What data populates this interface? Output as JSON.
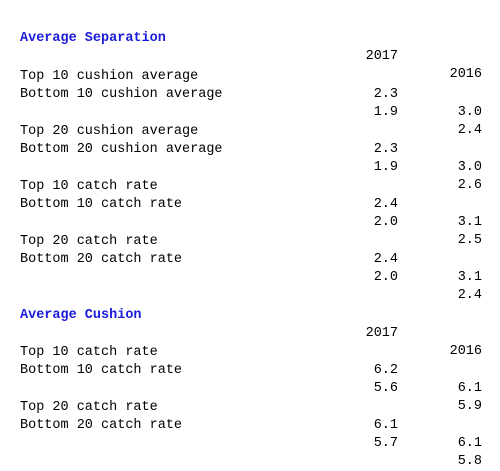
{
  "accent_color": "#1a1adb",
  "sections": [
    {
      "title": "Average Separation",
      "years": [
        "2017",
        "2016"
      ],
      "groups": [
        [
          {
            "label": "Top 10 cushion average",
            "v2017": "2.3",
            "v2016": "3.0"
          },
          {
            "label": "Bottom 10 cushion average",
            "v2017": "1.9",
            "v2016": "2.4"
          }
        ],
        [
          {
            "label": "Top 20 cushion average",
            "v2017": "2.3",
            "v2016": "3.0"
          },
          {
            "label": "Bottom 20 cushion average",
            "v2017": "1.9",
            "v2016": "2.6"
          }
        ],
        [
          {
            "label": "Top 10 catch rate",
            "v2017": "2.4",
            "v2016": "3.1"
          },
          {
            "label": "Bottom 10 catch rate",
            "v2017": "2.0",
            "v2016": "2.5"
          }
        ],
        [
          {
            "label": "Top 20 catch rate",
            "v2017": "2.4",
            "v2016": "3.1"
          },
          {
            "label": "Bottom 20 catch rate",
            "v2017": "2.0",
            "v2016": "2.4"
          }
        ]
      ]
    },
    {
      "title": "Average Cushion",
      "years": [
        "2017",
        "2016"
      ],
      "groups": [
        [
          {
            "label": "Top 10 catch rate",
            "v2017": "6.2",
            "v2016": "6.1"
          },
          {
            "label": "Bottom 10 catch rate",
            "v2017": "5.6",
            "v2016": "5.9"
          }
        ],
        [
          {
            "label": "Top 20 catch rate",
            "v2017": "6.1",
            "v2016": "6.1"
          },
          {
            "label": "Bottom 20 catch rate",
            "v2017": "5.7",
            "v2016": "5.8"
          }
        ]
      ]
    }
  ]
}
